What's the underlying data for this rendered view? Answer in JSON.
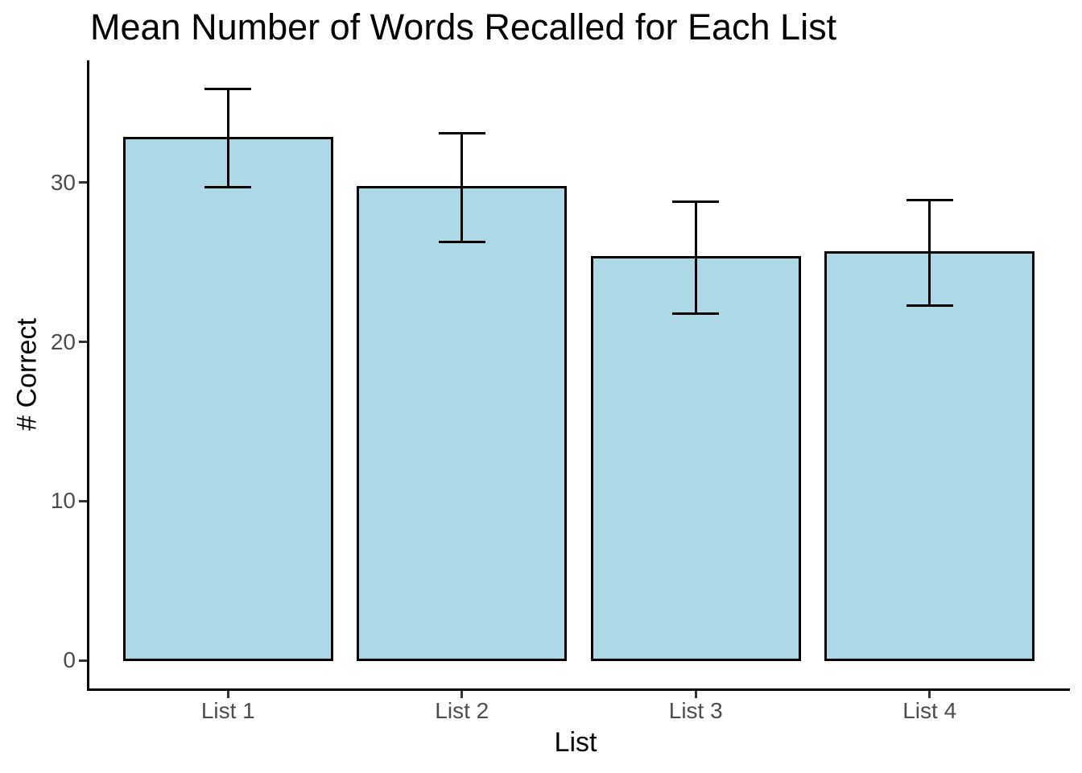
{
  "chart_data": {
    "type": "bar",
    "title": "Mean Number of Words Recalled for Each List",
    "xlabel": "List",
    "ylabel": "# Correct",
    "categories": [
      "List 1",
      "List 2",
      "List 3",
      "List 4"
    ],
    "values": [
      32.8,
      29.7,
      25.3,
      25.6
    ],
    "error_low": [
      29.7,
      26.3,
      21.8,
      22.3
    ],
    "error_high": [
      35.9,
      33.1,
      28.8,
      28.9
    ],
    "yticks": [
      0,
      10,
      20,
      30
    ],
    "ylim": [
      0,
      37.7
    ],
    "grid": false,
    "legend": "none",
    "bar_width_fraction": 0.9,
    "errorbar_cap_fraction": 0.2,
    "colors": {
      "background": "#FFFFFF",
      "bar_fill": "#ADD8E6",
      "bar_border": "#000000",
      "errorbar": "#000000",
      "axis_line": "#000000",
      "tick_mark": "#333333",
      "tick_label": "#4D4D4D",
      "title": "#000000",
      "axis_title": "#000000"
    }
  }
}
